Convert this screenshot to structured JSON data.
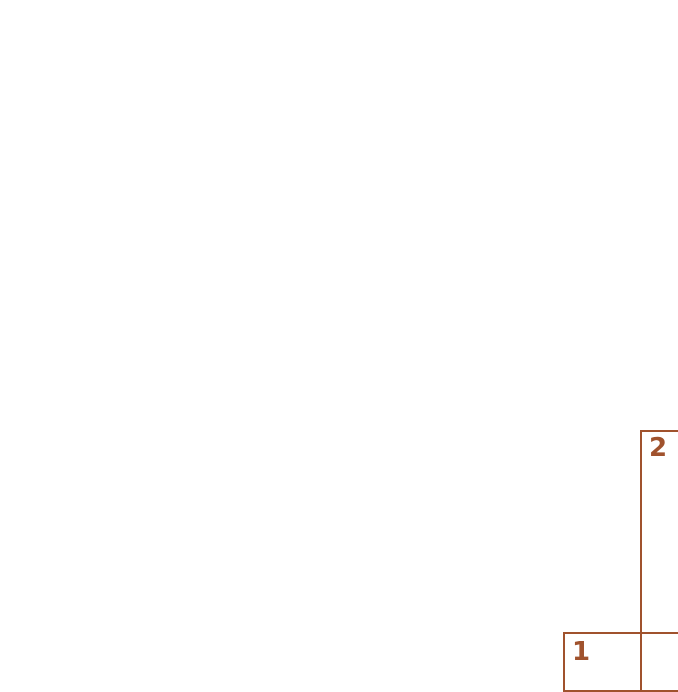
{
  "color": "#a0522d",
  "boxes": [
    {
      "label": "1"
    },
    {
      "label": "2"
    }
  ]
}
